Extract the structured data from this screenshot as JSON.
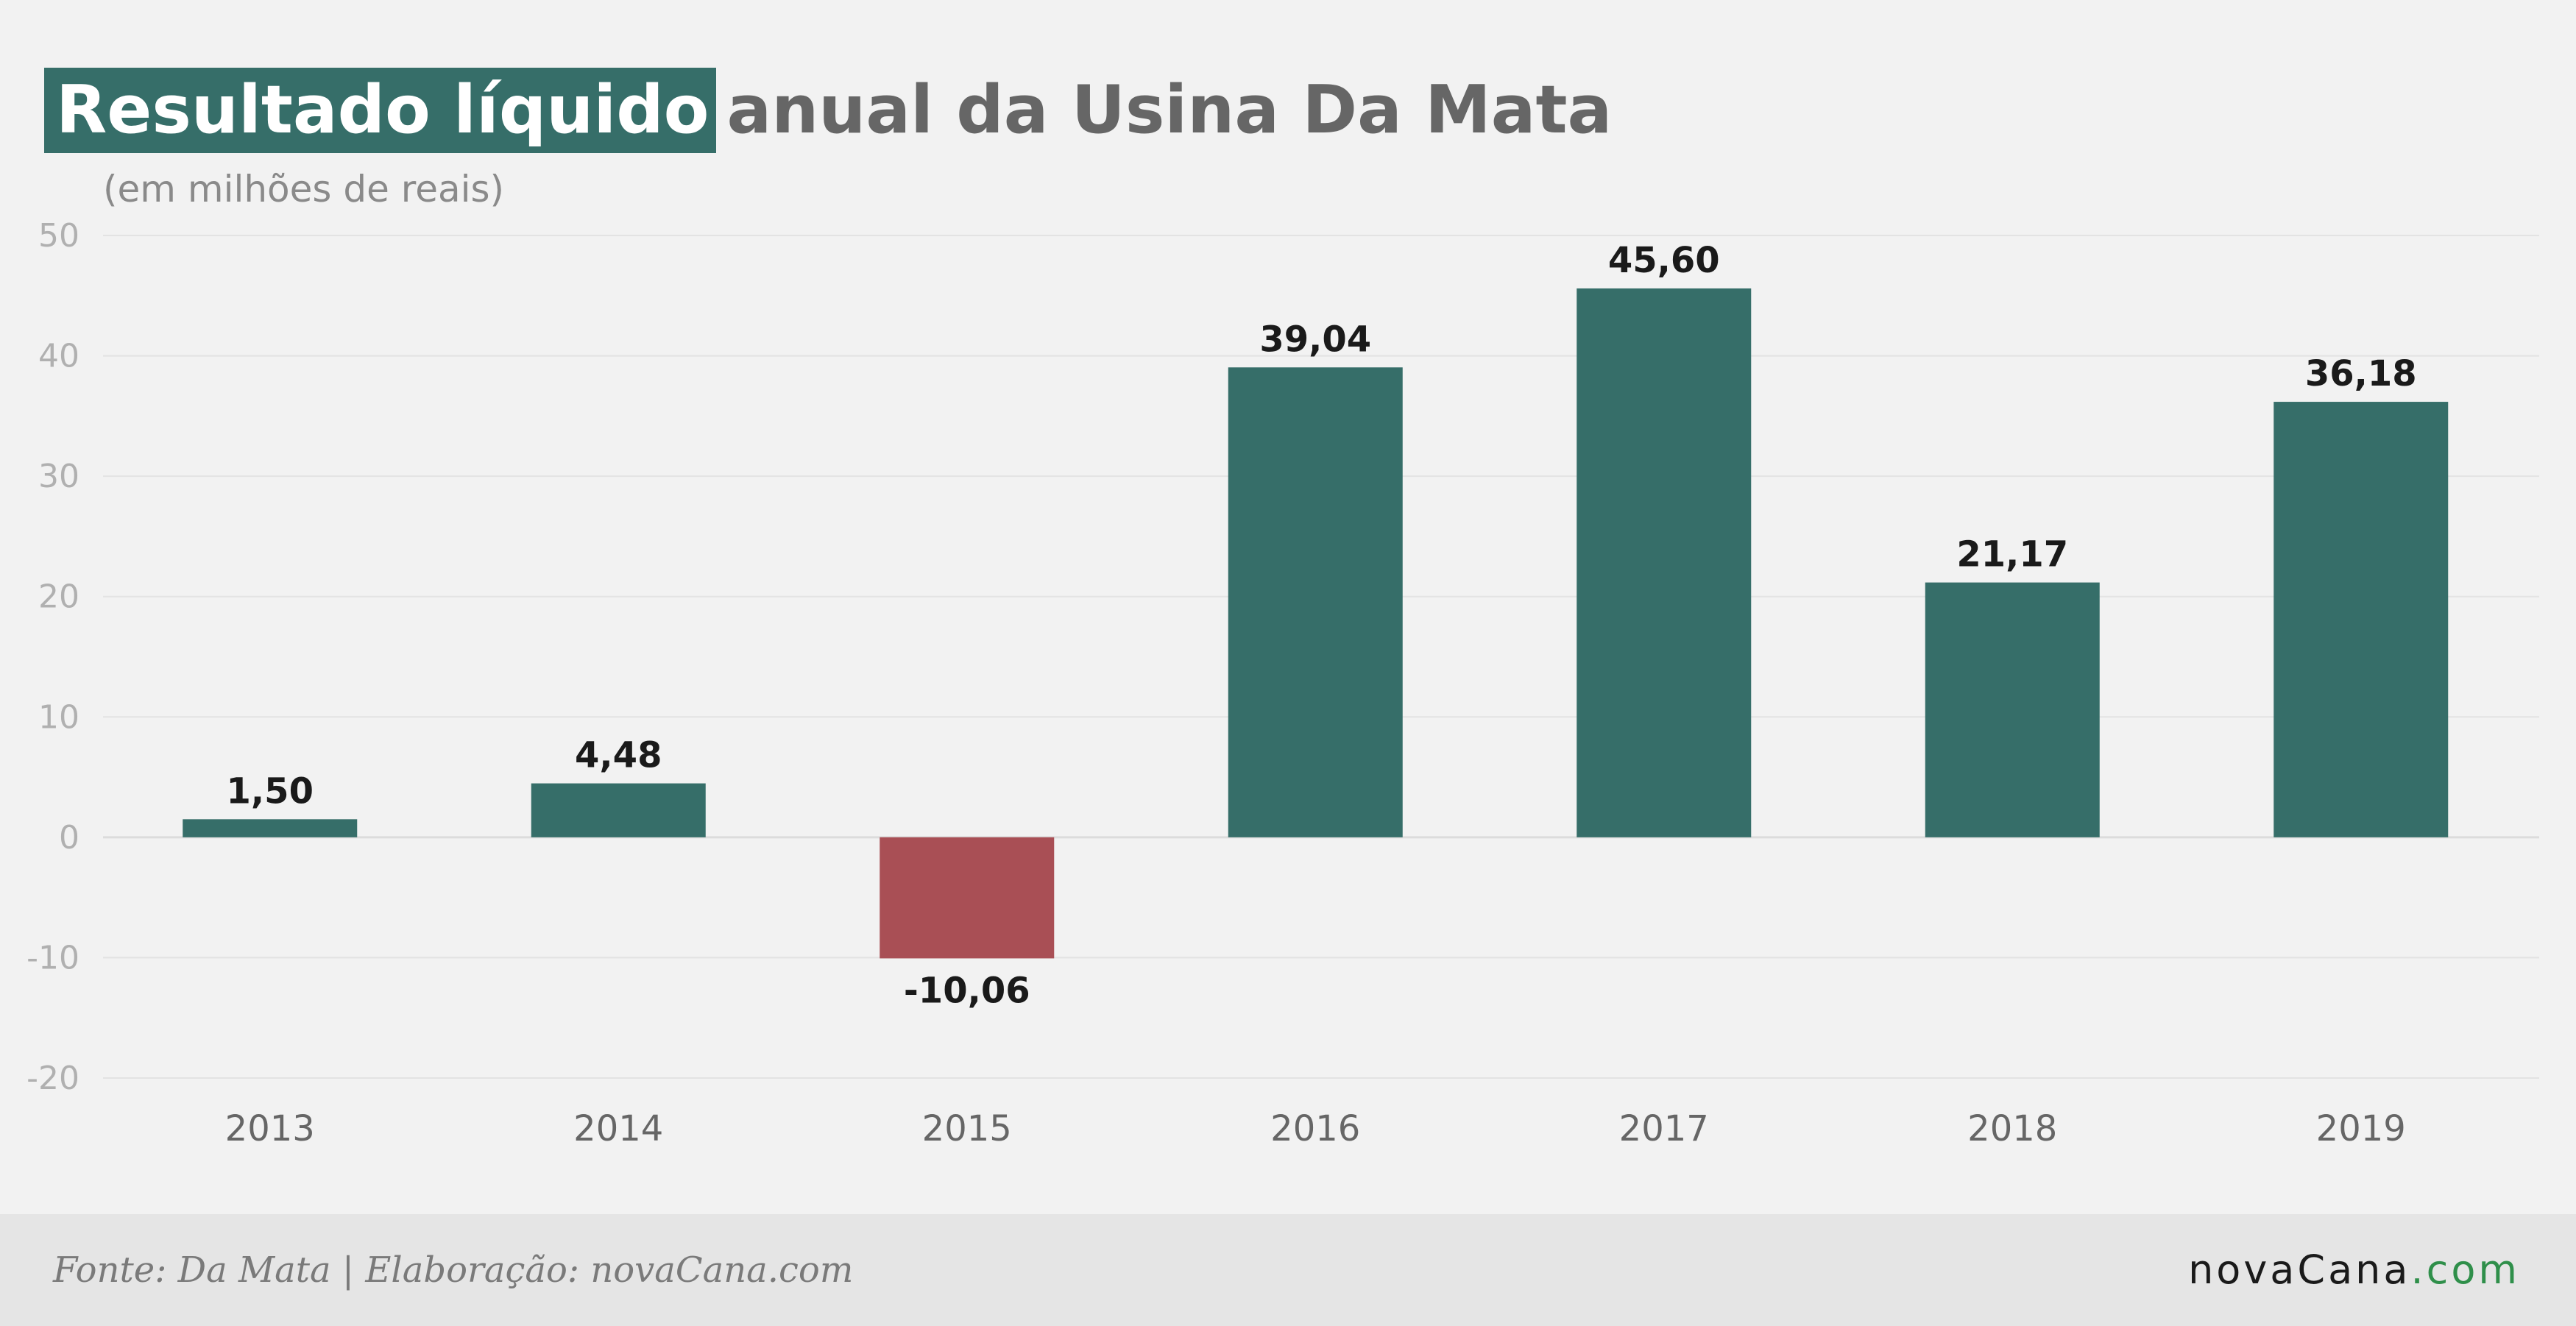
{
  "title": {
    "highlight": "Resultado líquido",
    "rest": "anual da Usina Da Mata",
    "subtitle": "(em milhões de reais)"
  },
  "footer": {
    "source": "Fonte: Da Mata | Elaboração: novaCana.com",
    "brand_main": "novaCana",
    "brand_suffix": ".com"
  },
  "colors": {
    "positive": "#366e69",
    "negative": "#a94f55",
    "tick_label": "#b0b0b0",
    "category_label": "#666666",
    "value_label": "#1a1a1a",
    "grid": "#e3e3e3",
    "title_highlight_bg": "#366e69",
    "brand_accent": "#2f8f4a"
  },
  "chart_data": {
    "type": "bar",
    "categories": [
      "2013",
      "2014",
      "2015",
      "2016",
      "2017",
      "2018",
      "2019"
    ],
    "values": [
      1.5,
      4.48,
      -10.06,
      39.04,
      45.6,
      21.17,
      36.18
    ],
    "value_labels": [
      "1,50",
      "4,48",
      "-10,06",
      "39,04",
      "45,60",
      "21,17",
      "36,18"
    ],
    "yticks": [
      50,
      40,
      30,
      20,
      10,
      0,
      -10,
      -20
    ],
    "ylim": [
      -20,
      50
    ],
    "title": "Resultado líquido anual da Usina Da Mata",
    "ylabel": "(em milhões de reais)",
    "xlabel": "",
    "grid": true,
    "legend": "none"
  }
}
